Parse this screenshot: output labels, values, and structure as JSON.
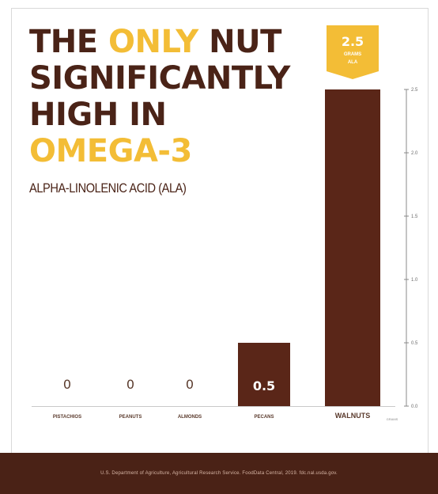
{
  "title": {
    "lines": [
      [
        {
          "text": "THE ",
          "accent": false
        },
        {
          "text": "ONLY",
          "accent": true
        },
        {
          "text": " NUT",
          "accent": false
        }
      ],
      [
        {
          "text": "SIGNIFICANTLY",
          "accent": false
        }
      ],
      [
        {
          "text": "HIGH IN",
          "accent": false
        }
      ],
      [
        {
          "text": "OMEGA-3",
          "accent": true
        }
      ]
    ]
  },
  "subtitle": "ALPHA-LINOLENIC ACID (ALA)",
  "colors": {
    "primary": "#4a2317",
    "accent": "#f3bd36",
    "bar": "#5a2618",
    "footer": "#4a2216",
    "label": "#5a3a2c"
  },
  "chart_data": {
    "type": "bar",
    "categories": [
      "PISTACHIOS",
      "PEANUTS",
      "ALMONDS",
      "PECANS",
      "WALNUTS"
    ],
    "values": [
      0,
      0,
      0,
      0.5,
      2.5
    ],
    "value_labels": [
      "0",
      "0",
      "0",
      "0.5",
      ""
    ],
    "ylim": [
      0,
      2.5
    ],
    "yticks": [
      0.0,
      0.5,
      1.0,
      1.5,
      2.0,
      2.5
    ],
    "ytick_labels": [
      "0.0",
      "0.5",
      "1.0",
      "1.5",
      "2.0",
      "2.5"
    ],
    "axis_note": "GRAMS",
    "grid": false,
    "highlight": {
      "value_text": "2.5",
      "unit_text": "GRAMS",
      "sub_text": "ALA"
    }
  },
  "footer": {
    "source": "U.S. Department of Agriculture, Agricultural Research Service. FoodData Central, 2019. fdc.nal.usda.gov."
  }
}
